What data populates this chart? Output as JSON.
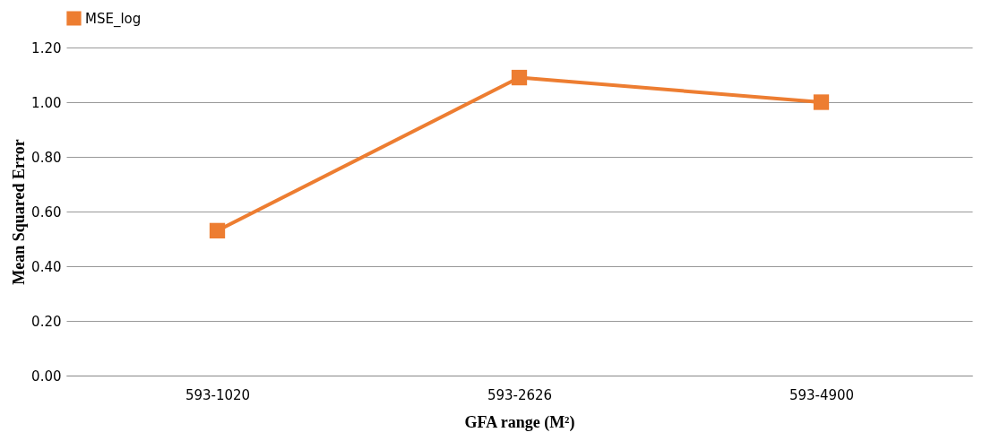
{
  "chart_data": {
    "type": "line",
    "xlabel": "GFA range (M²)",
    "ylabel": "Mean Squared Error",
    "categories": [
      "593-1020",
      "593-2626",
      "593-4900"
    ],
    "series": [
      {
        "name": "MSE_log",
        "color": "#ed7d31",
        "values": [
          0.53,
          1.09,
          1.0
        ]
      }
    ],
    "ylim": [
      0,
      1.2
    ],
    "yticks": [
      {
        "value": 0,
        "label": "0.00"
      },
      {
        "value": 0.2,
        "label": "0.20"
      },
      {
        "value": 0.4,
        "label": "0.40"
      },
      {
        "value": 0.6,
        "label": "0.60"
      },
      {
        "value": 0.8,
        "label": "0.80"
      },
      {
        "value": 1.0,
        "label": "1.00"
      },
      {
        "value": 1.2,
        "label": "1.20"
      }
    ],
    "grid": "y",
    "legend": "top",
    "marker": "square",
    "line_style": "solid"
  }
}
